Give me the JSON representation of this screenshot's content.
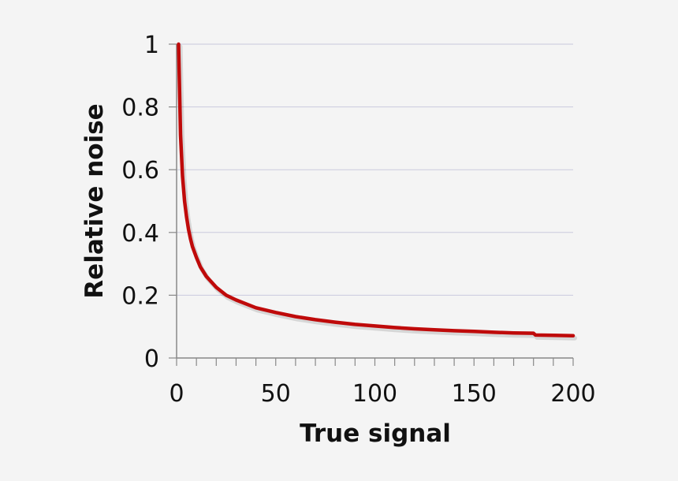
{
  "chart_data": {
    "type": "line",
    "xlabel": "True signal",
    "ylabel": "Relative noise",
    "xlim": [
      0,
      200
    ],
    "ylim": [
      0,
      1
    ],
    "x_ticks": [
      0,
      50,
      100,
      150,
      200
    ],
    "x_tick_labels": [
      "0",
      "50",
      "100",
      "150",
      "200"
    ],
    "y_ticks": [
      0,
      0.2,
      0.4,
      0.6,
      0.8,
      1
    ],
    "y_tick_labels": [
      "0",
      "0.2",
      "0.4",
      "0.6",
      "0.8",
      "1"
    ],
    "x_minor_step": 10,
    "grid": "horizontal",
    "legend": "none",
    "series": [
      {
        "color": "#bf0a0a",
        "x": [
          1,
          2,
          3,
          4,
          5,
          6,
          7,
          8,
          10,
          12,
          15,
          20,
          25,
          30,
          40,
          50,
          60,
          70,
          80,
          90,
          100,
          110,
          120,
          130,
          140,
          150,
          160,
          170,
          180,
          181,
          190,
          200
        ],
        "y": [
          1.0,
          0.71,
          0.58,
          0.5,
          0.45,
          0.41,
          0.38,
          0.355,
          0.32,
          0.29,
          0.26,
          0.225,
          0.2,
          0.185,
          0.16,
          0.145,
          0.132,
          0.122,
          0.114,
          0.107,
          0.102,
          0.097,
          0.093,
          0.09,
          0.087,
          0.085,
          0.082,
          0.08,
          0.079,
          0.073,
          0.072,
          0.071
        ]
      }
    ]
  },
  "colors": {
    "background": "#f4f4f4",
    "grid": "#c9c9dd",
    "axis": "#888888",
    "series": "#bf0a0a"
  }
}
